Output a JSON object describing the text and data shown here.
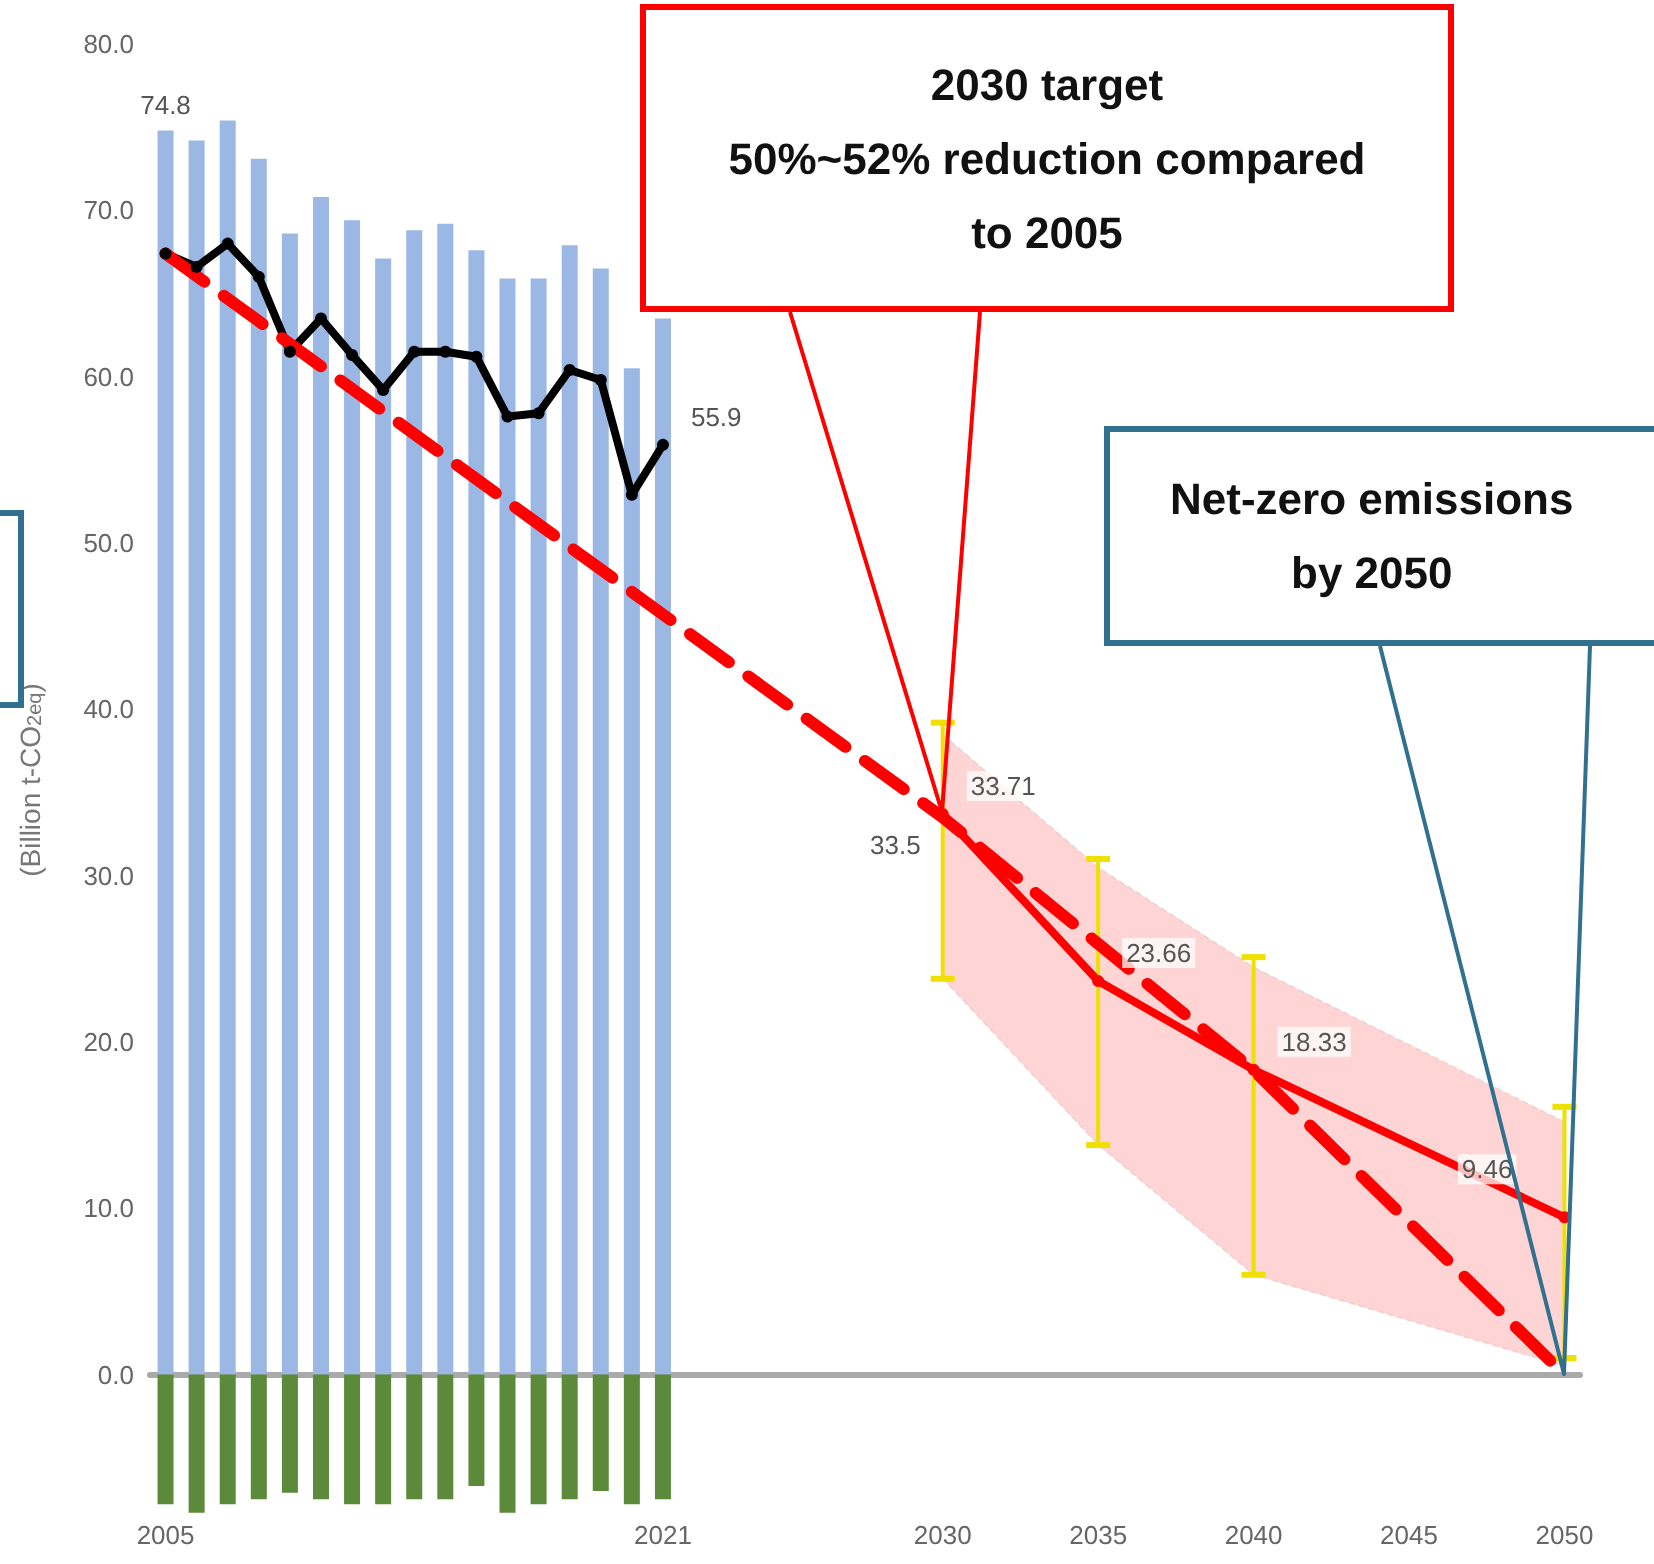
{
  "chart_data": {
    "type": "bar",
    "ylabel": "(Billion t-CO$_{2eq}$)",
    "stacked": true,
    "x": [
      2005,
      2006,
      2007,
      2008,
      2009,
      2010,
      2011,
      2012,
      2013,
      2014,
      2015,
      2016,
      2017,
      2018,
      2019,
      2020,
      2021
    ],
    "xlim": [
      2004.5,
      2050.5
    ],
    "xticks": [
      2005,
      2021,
      2030,
      2035,
      2040,
      2045,
      2050
    ],
    "ylim": [
      -8.5,
      80
    ],
    "yticks": [
      {
        "value": 0,
        "label": "0.0"
      },
      {
        "value": 10,
        "label": "10.0"
      },
      {
        "value": 20,
        "label": "20.0"
      },
      {
        "value": 30,
        "label": "30.0"
      },
      {
        "value": 40,
        "label": "40.0"
      },
      {
        "value": 50,
        "label": "50.0"
      },
      {
        "value": 60,
        "label": "60.0"
      },
      {
        "value": 70,
        "label": "70.0"
      },
      {
        "value": 80,
        "label": "80.0"
      }
    ],
    "series": [
      {
        "color": "#9bb7e4",
        "values": [
          74.8,
          74.2,
          75.4,
          73.1,
          68.6,
          70.8,
          69.4,
          67.1,
          68.8,
          69.2,
          67.6,
          65.9,
          65.9,
          67.9,
          66.5,
          60.5,
          63.5
        ],
        "value_labels": [
          "74.8",
          null,
          null,
          null,
          null,
          null,
          null,
          null,
          null,
          null,
          null,
          null,
          null,
          null,
          null,
          null,
          null
        ]
      },
      {
        "color": "#5a8a3a",
        "values": [
          -7.8,
          -8.3,
          -7.8,
          -7.5,
          -7.1,
          -7.5,
          -7.8,
          -7.8,
          -7.5,
          -7.5,
          -6.7,
          -8.3,
          -7.8,
          -7.5,
          -7.0,
          -7.8,
          -7.5
        ]
      },
      {
        "type": "line",
        "color": "#000000",
        "marker": "circle",
        "line_style": "solid",
        "values": [
          67.4,
          66.6,
          68.0,
          66.0,
          61.5,
          63.5,
          61.3,
          59.2,
          61.5,
          61.5,
          61.2,
          57.6,
          57.8,
          60.4,
          59.8,
          52.9,
          55.9
        ],
        "value_labels": [
          null,
          null,
          null,
          null,
          null,
          null,
          null,
          null,
          null,
          null,
          null,
          null,
          null,
          null,
          null,
          null,
          "55.9"
        ]
      },
      {
        "type": "line",
        "color": "#ff0000",
        "marker": "none",
        "line_style": "dashed",
        "x": [
          2005,
          2030,
          2040,
          2050
        ],
        "values": [
          67.4,
          33.5,
          18.3,
          0
        ],
        "value_labels": [
          null,
          "33.5",
          null,
          null
        ]
      },
      {
        "type": "line",
        "color": "#ff0000",
        "marker": "circle",
        "line_style": "solid",
        "x": [
          2030,
          2035,
          2040,
          2050
        ],
        "values": [
          33.71,
          23.66,
          18.33,
          9.46
        ],
        "value_labels": [
          "33.71",
          "23.66",
          "18.33",
          "9.46"
        ],
        "errors": [
          [
            23.8,
            39.2
          ],
          [
            13.8,
            31.0
          ],
          [
            6.0,
            25.1
          ],
          [
            1.0,
            16.1
          ]
        ],
        "lower": [
          23.8,
          13.8,
          6.0,
          0.5
        ],
        "upper": [
          38.5,
          30.5,
          24.5,
          15.2
        ]
      }
    ],
    "annotations": [
      "2030 target\n50%~52% reduction compared\nto 2005",
      "Net-zero emissions\nby 2050"
    ]
  }
}
